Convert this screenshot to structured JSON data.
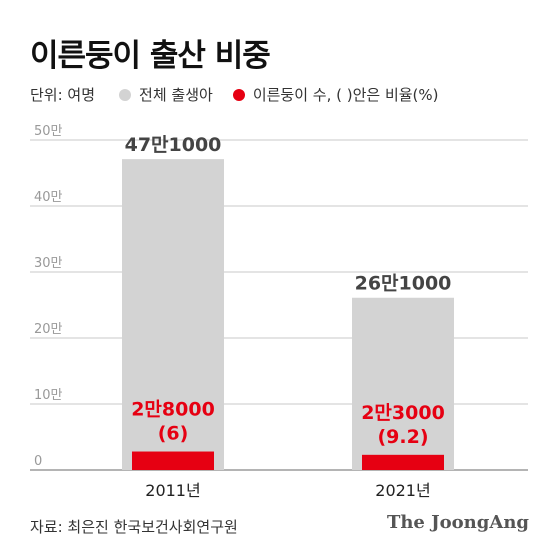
{
  "header": {
    "title": "이른둥이 출산 비중"
  },
  "legend": {
    "unit": "단위: 여명",
    "items": [
      {
        "label": "전체 출생아",
        "color": "#d3d3d3"
      },
      {
        "label": "이른둥이 수, ( )안은 비율(%)",
        "color": "#e60012"
      }
    ]
  },
  "footer": {
    "source": "자료: 최은진 한국보건사회연구원",
    "brand": "The JoongAng"
  },
  "chart_data": {
    "type": "bar",
    "categories": [
      "2011년",
      "2021년"
    ],
    "series": [
      {
        "name": "전체 출생아",
        "values": [
          471000,
          261000
        ],
        "color": "#d3d3d3",
        "labels": [
          [
            "47만1000"
          ],
          [
            "26만1000"
          ]
        ],
        "label_color": "#444444"
      },
      {
        "name": "이른둥이 수",
        "values": [
          28000,
          23000
        ],
        "color": "#e60012",
        "labels": [
          [
            "2만8000",
            "(6)"
          ],
          [
            "2만3000",
            "(9.2)"
          ]
        ],
        "label_color": "#e60012"
      }
    ],
    "preterm_ratio_percent": [
      6,
      9.2
    ],
    "ylim": [
      0,
      500000
    ],
    "yticks": [
      0,
      100000,
      200000,
      300000,
      400000,
      500000
    ],
    "ytick_labels": [
      "0",
      "10만",
      "20만",
      "30만",
      "40만",
      "50만"
    ],
    "grid": true
  }
}
